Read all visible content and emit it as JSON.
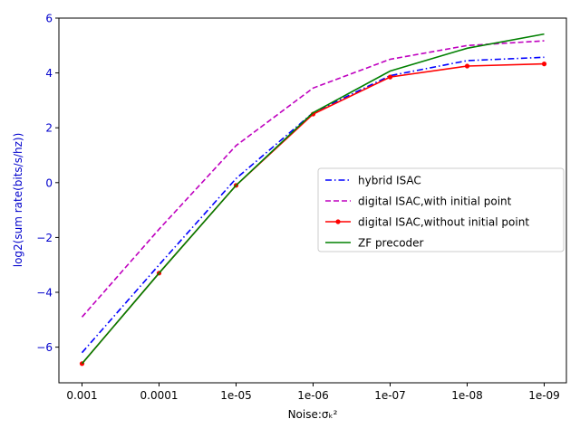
{
  "chart_data": {
    "type": "line",
    "title": "",
    "xlabel": "Noise:σₖ²",
    "ylabel": "log2(sum rate(bits/s/hz))",
    "categories": [
      "0.001",
      "0.0001",
      "1e-05",
      "1e-06",
      "1e-07",
      "1e-08",
      "1e-09"
    ],
    "ylim": [
      -7.3,
      6.0
    ],
    "yticks": [
      "6",
      "4",
      "2",
      "0",
      "−2",
      "−4",
      "−6"
    ],
    "grid": false,
    "legend_position": "center-right",
    "series": [
      {
        "name": "hybrid ISAC",
        "color": "#0000ff",
        "style": "dashdot",
        "marker": "none",
        "values": [
          -6.2,
          -3.0,
          0.15,
          2.55,
          3.9,
          4.45,
          4.57
        ]
      },
      {
        "name": "digital ISAC,with initial point",
        "color": "#bf00bf",
        "style": "dashed",
        "marker": "none",
        "values": [
          -4.9,
          -1.7,
          1.35,
          3.45,
          4.5,
          5.0,
          5.17
        ]
      },
      {
        "name": "digital ISAC,without initial point",
        "color": "#ff0000",
        "style": "solid",
        "marker": "dot",
        "values": [
          -6.6,
          -3.3,
          -0.1,
          2.5,
          3.85,
          4.25,
          4.33
        ]
      },
      {
        "name": "ZF precoder",
        "color": "#008000",
        "style": "solid",
        "marker": "none",
        "values": [
          -6.6,
          -3.3,
          -0.1,
          2.55,
          4.07,
          4.9,
          5.42
        ]
      }
    ]
  }
}
